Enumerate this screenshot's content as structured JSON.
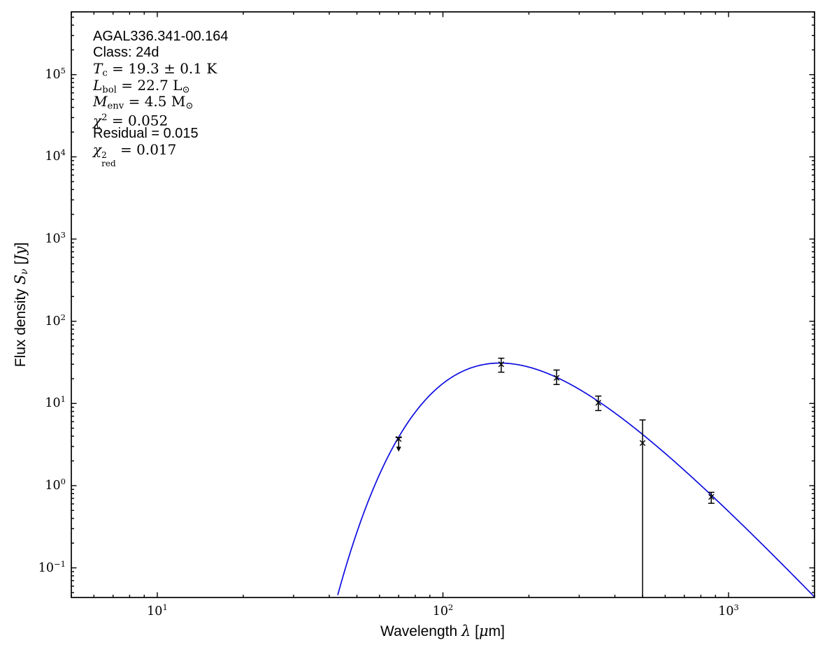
{
  "chart_data": {
    "type": "line",
    "title": "",
    "description": "Spectral energy distribution (SED) greybody fit for an ATLASGAL clump: blue model curve with black photometric data points and error bars on log-log axes.",
    "xlabel_text": "Wavelength λ [μm]",
    "ylabel_text": "Flux density Sν [Jy]",
    "xlabel_segments": [
      {
        "t": "Wavelength ",
        "s": "sf"
      },
      {
        "t": "λ",
        "s": "it"
      },
      {
        "t": " [",
        "s": "sf"
      },
      {
        "t": "μ",
        "s": "it"
      },
      {
        "t": "m]",
        "s": "sf"
      }
    ],
    "ylabel_segments": [
      {
        "t": "Flux density ",
        "s": "sf"
      },
      {
        "t": "S",
        "s": "it"
      },
      {
        "t": "ν",
        "s": "subit"
      },
      {
        "t": " [",
        "s": "sf"
      },
      {
        "t": "Jy",
        "s": "it"
      },
      {
        "t": "]",
        "s": "sf"
      }
    ],
    "x_axis": {
      "scale": "log",
      "range_um": [
        5,
        2000
      ],
      "tick_label_base": "10",
      "major_tick_exponents": [
        1,
        2,
        3
      ],
      "grid": false
    },
    "y_axis": {
      "scale": "log",
      "range_jy": [
        0.0436,
        580000
      ],
      "tick_label_base": "10",
      "major_tick_exponents": [
        5,
        4,
        3,
        2,
        1,
        0,
        -1
      ],
      "grid": false
    },
    "annotation": {
      "lines": [
        {
          "text": "AGAL336.341-00.164",
          "segments": [
            {
              "t": "AGAL336.341-00.164",
              "s": "sf"
            }
          ]
        },
        {
          "text": "Class: 24d",
          "segments": [
            {
              "t": "Class: 24d",
              "s": "sf"
            }
          ]
        },
        {
          "text": "Tc = 19.3 ± 0.1 K",
          "segments": [
            {
              "t": "T",
              "s": "it"
            },
            {
              "t": "c",
              "s": "sub"
            },
            {
              "t": " = 19.3 ± 0.1 K",
              "s": "rm"
            }
          ]
        },
        {
          "text": "Lbol = 22.7 L⊙",
          "segments": [
            {
              "t": "L",
              "s": "it"
            },
            {
              "t": "bol",
              "s": "sub"
            },
            {
              "t": " = 22.7 L",
              "s": "rm"
            },
            {
              "t": "⊙",
              "s": "sub"
            }
          ]
        },
        {
          "text": "Menv = 4.5 M⊙",
          "segments": [
            {
              "t": "M",
              "s": "it"
            },
            {
              "t": "env",
              "s": "sub"
            },
            {
              "t": " = 4.5 M",
              "s": "rm"
            },
            {
              "t": "⊙",
              "s": "sub"
            }
          ]
        },
        {
          "text": "χ² = 0.052",
          "segments": [
            {
              "t": "χ",
              "s": "it"
            },
            {
              "t": "2",
              "s": "sup"
            },
            {
              "t": " = 0.052",
              "s": "rm"
            }
          ]
        },
        {
          "text": "Residual = 0.015",
          "segments": [
            {
              "t": "Residual = 0.015",
              "s": "sf"
            }
          ]
        },
        {
          "text": "χ²red = 0.017",
          "segments": [
            {
              "t": "χ",
              "s": "it"
            },
            {
              "s": "stack",
              "sup": "2",
              "sub": "red"
            },
            {
              "t": " = 0.017",
              "s": "rm"
            }
          ]
        }
      ]
    },
    "series": [
      {
        "name": "greybody-fit-curve",
        "type": "model-curve",
        "color": "#0d0de0",
        "model": {
          "kind": "greybody",
          "T_K": 19.3,
          "beta": 1.75,
          "peak_flux_jy": 31,
          "peak_wavelength_um": 158.4,
          "lambda_start_um": 42,
          "lambda_end_um": 2000
        }
      },
      {
        "name": "photometry-points",
        "type": "errorbar-points",
        "color": "#000000",
        "marker": "x",
        "points": [
          {
            "wavelength_um": 70,
            "flux_jy": 3.7,
            "err_hi_jy": 3.85,
            "upper_limit": true,
            "arrow_tip_jy": 2.7
          },
          {
            "wavelength_um": 160,
            "flux_jy": 30,
            "err_hi_jy": 35.5,
            "err_lo_jy": 24
          },
          {
            "wavelength_um": 250,
            "flux_jy": 20.5,
            "err_hi_jy": 25.5,
            "err_lo_jy": 17
          },
          {
            "wavelength_um": 350,
            "flux_jy": 10.2,
            "err_hi_jy": 12.3,
            "err_lo_jy": 8.2
          },
          {
            "wavelength_um": 500,
            "flux_jy": 3.3,
            "err_hi_jy": 6.3,
            "err_lo_jy": null,
            "error_extends_below_axis": true
          },
          {
            "wavelength_um": 870,
            "flux_jy": 0.73,
            "err_hi_jy": 0.83,
            "err_lo_jy": 0.61
          }
        ]
      }
    ],
    "frame_color": "#000000",
    "background_color": "#ffffff"
  }
}
